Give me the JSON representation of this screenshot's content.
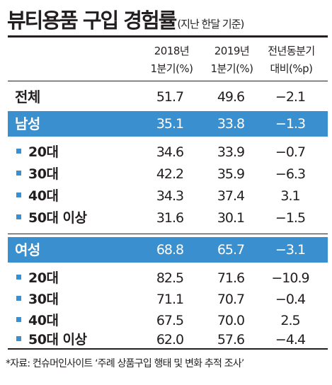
{
  "title": "뷰티용품 구입 경험률",
  "subtitle": "(지난 한달 기준)",
  "columns": [
    {
      "line1": "2018년",
      "line2": "1분기(%)"
    },
    {
      "line1": "2019년",
      "line2": "1분기(%)"
    },
    {
      "line1": "전년동분기",
      "line2": "대비(%p)"
    }
  ],
  "rows": {
    "total": {
      "label": "전체",
      "values": [
        "51.7",
        "49.6",
        "−2.1"
      ]
    },
    "male": {
      "label": "남성",
      "values": [
        "35.1",
        "33.8",
        "−1.3"
      ]
    },
    "male_20": {
      "label": "20대",
      "values": [
        "34.6",
        "33.9",
        "−0.7"
      ]
    },
    "male_30": {
      "label": "30대",
      "values": [
        "42.2",
        "35.9",
        "−6.3"
      ]
    },
    "male_40": {
      "label": "40대",
      "values": [
        "34.3",
        "37.4",
        "3.1"
      ]
    },
    "male_50": {
      "label": "50대 이상",
      "values": [
        "31.6",
        "30.1",
        "−1.5"
      ]
    },
    "female": {
      "label": "여성",
      "values": [
        "68.8",
        "65.7",
        "−3.1"
      ]
    },
    "female_20": {
      "label": "20대",
      "values": [
        "82.5",
        "71.6",
        "−10.9"
      ]
    },
    "female_30": {
      "label": "30대",
      "values": [
        "71.1",
        "70.7",
        "−0.4"
      ]
    },
    "female_40": {
      "label": "40대",
      "values": [
        "67.5",
        "70.0",
        "2.5"
      ]
    },
    "female_50": {
      "label": "50대 이상",
      "values": [
        "62.0",
        "57.6",
        "−4.4"
      ]
    }
  },
  "source": "*자료: 컨슈머인사이트 ‘주례 상품구입 행태 및 변화 추적 조사’",
  "colors": {
    "band": "#3a8fcf",
    "bullet": "#3a8fcf",
    "text": "#231f20"
  }
}
